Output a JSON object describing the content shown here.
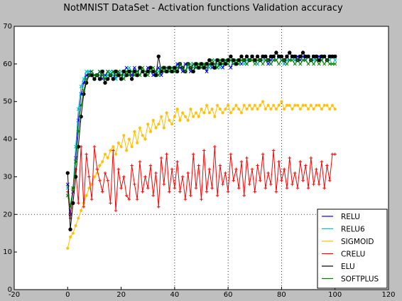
{
  "chart_data": {
    "type": "line",
    "title": "NotMNIST DataSet - Activation functions Validation accuracy",
    "xlabel": "",
    "ylabel": "",
    "xlim": [
      -20,
      120
    ],
    "ylim": [
      0,
      70
    ],
    "x_ticks": [
      -20,
      0,
      20,
      40,
      60,
      80,
      100,
      120
    ],
    "y_ticks": [
      0,
      10,
      20,
      30,
      40,
      50,
      60,
      70
    ],
    "grid": "dotted at x=40, 60, 80 and y=20",
    "legend_position": "bottom-right",
    "x": [
      0,
      1,
      2,
      3,
      4,
      5,
      6,
      7,
      8,
      9,
      10,
      11,
      12,
      13,
      14,
      15,
      16,
      17,
      18,
      19,
      20,
      21,
      22,
      23,
      24,
      25,
      26,
      27,
      28,
      29,
      30,
      31,
      32,
      33,
      34,
      35,
      36,
      37,
      38,
      39,
      40,
      41,
      42,
      43,
      44,
      45,
      46,
      47,
      48,
      49,
      50,
      51,
      52,
      53,
      54,
      55,
      56,
      57,
      58,
      59,
      60,
      61,
      62,
      63,
      64,
      65,
      66,
      67,
      68,
      69,
      70,
      71,
      72,
      73,
      74,
      75,
      76,
      77,
      78,
      79,
      80,
      81,
      82,
      83,
      84,
      85,
      86,
      87,
      88,
      89,
      90,
      91,
      92,
      93,
      94,
      95,
      96,
      97,
      98,
      99,
      100
    ],
    "series": [
      {
        "name": "RELU",
        "color": "#0000ff",
        "marker": "x",
        "values": [
          28,
          20,
          26,
          35,
          45,
          52,
          55,
          57,
          58,
          58,
          57,
          57,
          58,
          56,
          57,
          58,
          57,
          58,
          56,
          58,
          57,
          58,
          59,
          58,
          57,
          59,
          58,
          59,
          58,
          57,
          59,
          58,
          57,
          58,
          59,
          57,
          58,
          59,
          58,
          59,
          58,
          60,
          59,
          58,
          60,
          59,
          58,
          60,
          59,
          60,
          59,
          60,
          58,
          60,
          59,
          60,
          61,
          60,
          59,
          61,
          60,
          59,
          61,
          60,
          61,
          60,
          61,
          60,
          61,
          62,
          61,
          60,
          61,
          62,
          61,
          60,
          61,
          62,
          61,
          62,
          61,
          60,
          62,
          61,
          62,
          61,
          62,
          61,
          62,
          61,
          62,
          61,
          62,
          61,
          62,
          61,
          62,
          61,
          62,
          62,
          62
        ]
      },
      {
        "name": "RELU6",
        "color": "#00bfbf",
        "marker": "x",
        "values": [
          27,
          22,
          27,
          38,
          48,
          54,
          56,
          58,
          58,
          57,
          56,
          57,
          57,
          58,
          56,
          57,
          58,
          57,
          56,
          57,
          58,
          57,
          58,
          59,
          58,
          57,
          58,
          59,
          58,
          57,
          58,
          59,
          58,
          57,
          58,
          59,
          58,
          59,
          58,
          59,
          58,
          59,
          60,
          59,
          58,
          59,
          60,
          59,
          60,
          59,
          60,
          59,
          60,
          59,
          60,
          61,
          60,
          59,
          60,
          61,
          60,
          61,
          60,
          61,
          60,
          61,
          60,
          61,
          61,
          62,
          61,
          60,
          61,
          61,
          62,
          61,
          60,
          61,
          61,
          62,
          61,
          60,
          61,
          61,
          62,
          61,
          61,
          62,
          61,
          61,
          62,
          61,
          61,
          62,
          61,
          61,
          62,
          61,
          61,
          62,
          61
        ]
      },
      {
        "name": "SIGMOID",
        "color": "#ffbf00",
        "marker": "*",
        "values": [
          11,
          14,
          15,
          17,
          19,
          21,
          23,
          25,
          27,
          28,
          30,
          31,
          33,
          34,
          36,
          35,
          37,
          38,
          36,
          39,
          38,
          41,
          37,
          40,
          38,
          42,
          39,
          43,
          41,
          40,
          44,
          42,
          45,
          43,
          44,
          46,
          43,
          47,
          45,
          44,
          46,
          48,
          45,
          47,
          46,
          45,
          48,
          46,
          47,
          46,
          48,
          47,
          49,
          47,
          48,
          46,
          49,
          48,
          47,
          48,
          49,
          47,
          48,
          49,
          48,
          47,
          49,
          48,
          49,
          48,
          49,
          48,
          49,
          50,
          48,
          49,
          48,
          49,
          48,
          49,
          50,
          48,
          49,
          49,
          48,
          49,
          49,
          48,
          49,
          49,
          48,
          49,
          48,
          49,
          49,
          48,
          49,
          49,
          48,
          49,
          48
        ]
      },
      {
        "name": "CRELU",
        "color": "#ff0000",
        "marker": "+",
        "values": [
          26,
          19,
          27,
          32,
          23,
          38,
          22,
          36,
          30,
          24,
          38,
          32,
          29,
          26,
          31,
          29,
          23,
          37,
          21,
          32,
          27,
          30,
          25,
          24,
          33,
          28,
          24,
          34,
          26,
          30,
          27,
          33,
          25,
          31,
          22,
          35,
          28,
          36,
          26,
          32,
          27,
          34,
          26,
          30,
          24,
          31,
          25,
          36,
          27,
          33,
          24,
          37,
          26,
          32,
          27,
          38,
          25,
          33,
          28,
          31,
          26,
          36,
          29,
          32,
          27,
          34,
          25,
          35,
          28,
          32,
          26,
          33,
          29,
          36,
          27,
          31,
          28,
          37,
          26,
          34,
          29,
          32,
          27,
          35,
          28,
          31,
          27,
          34,
          29,
          33,
          27,
          35,
          28,
          32,
          28,
          34,
          27,
          33,
          29,
          36,
          36
        ]
      },
      {
        "name": "ELU",
        "color": "#000000",
        "marker": "o",
        "values": [
          31,
          16,
          23,
          30,
          38,
          46,
          52,
          55,
          57,
          57,
          56,
          57,
          56,
          58,
          55,
          56,
          57,
          56,
          58,
          57,
          56,
          58,
          57,
          58,
          56,
          58,
          57,
          59,
          58,
          57,
          58,
          59,
          58,
          57,
          62,
          58,
          59,
          58,
          59,
          58,
          59,
          58,
          60,
          59,
          58,
          60,
          59,
          58,
          60,
          59,
          60,
          59,
          60,
          61,
          60,
          59,
          61,
          60,
          61,
          60,
          61,
          62,
          61,
          60,
          61,
          62,
          61,
          62,
          61,
          62,
          61,
          62,
          61,
          62,
          62,
          61,
          62,
          62,
          63,
          62,
          62,
          61,
          62,
          63,
          62,
          62,
          61,
          62,
          63,
          62,
          62,
          61,
          62,
          62,
          61,
          62,
          62,
          61,
          62,
          62,
          62
        ]
      },
      {
        "name": "SOFTPLUS",
        "color": "#007f00",
        "marker": "x",
        "values": [
          25,
          22,
          27,
          34,
          42,
          49,
          53,
          56,
          57,
          58,
          57,
          57,
          58,
          57,
          56,
          58,
          57,
          58,
          57,
          58,
          57,
          56,
          58,
          57,
          58,
          57,
          58,
          57,
          59,
          58,
          57,
          58,
          59,
          58,
          57,
          59,
          58,
          59,
          58,
          59,
          58,
          59,
          60,
          59,
          58,
          60,
          59,
          60,
          59,
          60,
          59,
          60,
          59,
          60,
          61,
          60,
          59,
          61,
          60,
          61,
          60,
          61,
          60,
          61,
          60,
          61,
          61,
          60,
          61,
          61,
          60,
          61,
          61,
          60,
          61,
          61,
          60,
          61,
          61,
          60,
          61,
          61,
          60,
          61,
          61,
          60,
          61,
          60,
          61,
          61,
          60,
          61,
          60,
          61,
          60,
          61,
          60,
          61,
          60,
          60,
          60
        ]
      }
    ]
  }
}
